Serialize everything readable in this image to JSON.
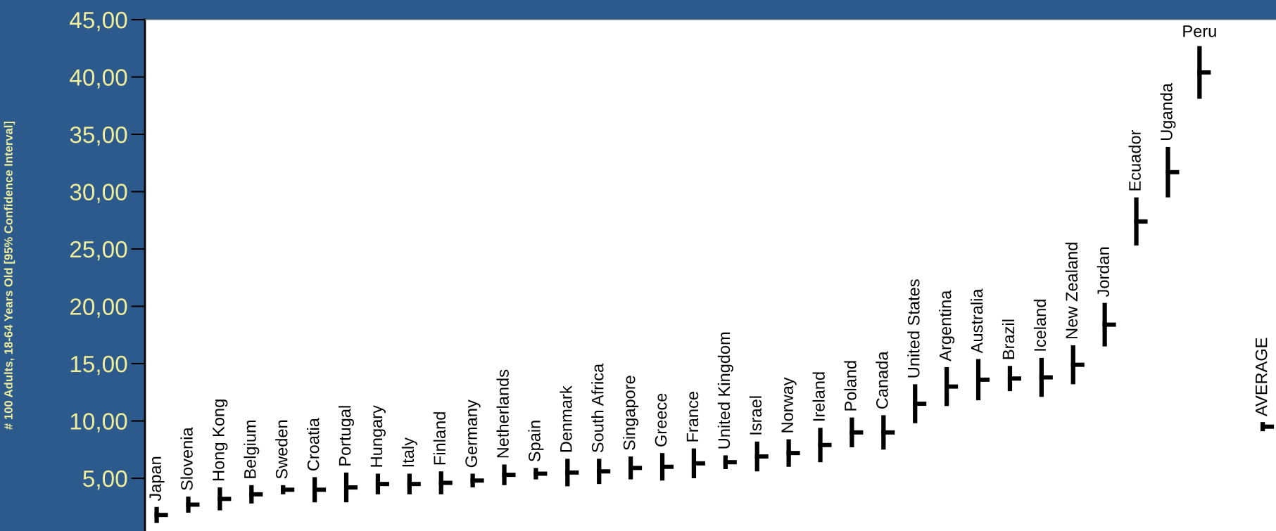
{
  "chart_data": {
    "type": "scatter",
    "ylabel": "# 100 Adults, 18-64 Years Old [95% Confidence Interval]",
    "categories": [
      "Japan",
      "Slovenia",
      "Hong Kong",
      "Belgium",
      "Sweden",
      "Croatia",
      "Portugal",
      "Hungary",
      "Italy",
      "Finland",
      "Germany",
      "Netherlands",
      "Spain",
      "Denmark",
      "South Africa",
      "Singapore",
      "Greece",
      "France",
      "United Kingdom",
      "Israel",
      "Norway",
      "Ireland",
      "Poland",
      "Canada",
      "United States",
      "Argentina",
      "Australia",
      "Brazil",
      "Iceland",
      "New Zealand",
      "Jordan",
      "Ecuador",
      "Uganda",
      "Peru",
      null,
      "AVERAGE"
    ],
    "series": [
      {
        "color": "#000000",
        "values": [
          1.8,
          2.7,
          3.2,
          3.6,
          4.0,
          4.0,
          4.2,
          4.5,
          4.5,
          4.6,
          4.8,
          5.3,
          5.4,
          5.5,
          5.6,
          5.9,
          6.0,
          6.3,
          6.4,
          6.9,
          7.2,
          7.9,
          9.0,
          9.0,
          11.5,
          13.0,
          13.6,
          13.7,
          13.8,
          14.9,
          18.4,
          27.4,
          31.7,
          40.4,
          null,
          9.5
        ],
        "errors": [
          0.7,
          0.7,
          1.0,
          0.8,
          0.4,
          1.1,
          1.3,
          0.9,
          0.9,
          1.0,
          0.6,
          0.9,
          0.5,
          1.2,
          1.1,
          1.0,
          1.2,
          1.3,
          0.6,
          1.3,
          1.2,
          1.5,
          1.3,
          1.5,
          1.7,
          1.7,
          1.8,
          1.1,
          1.7,
          1.7,
          1.9,
          2.1,
          2.2,
          2.3,
          null,
          0.4
        ]
      }
    ],
    "data_labels": false,
    "ylim": [
      0.4,
      45
    ],
    "yticks": [
      {
        "value": 5,
        "label": "5,00"
      },
      {
        "value": 10,
        "label": "10,00"
      },
      {
        "value": 15,
        "label": "15,00"
      },
      {
        "value": 20,
        "label": "20,00"
      },
      {
        "value": 25,
        "label": "25,00"
      },
      {
        "value": 30,
        "label": "30,00"
      },
      {
        "value": 35,
        "label": "35,00"
      },
      {
        "value": 40,
        "label": "40,00"
      },
      {
        "value": 45,
        "label": "45,00"
      }
    ],
    "grid": false,
    "legend": false,
    "tick_labels": "y"
  }
}
